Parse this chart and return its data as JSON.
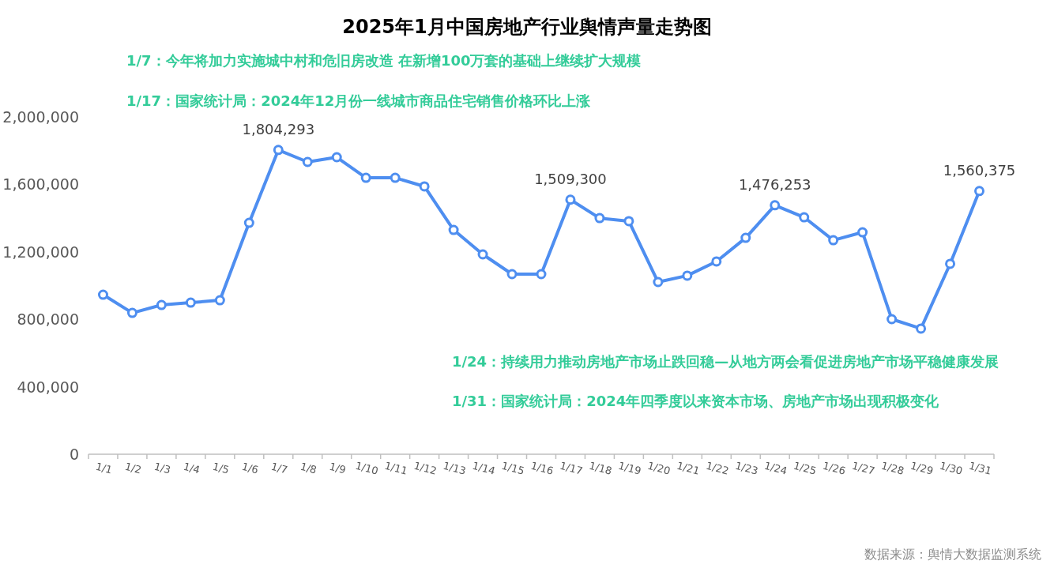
{
  "chart_data": {
    "type": "line",
    "title": "2025年1月中国房地产行业舆情声量走势图",
    "categories": [
      "1/1",
      "1/2",
      "1/3",
      "1/4",
      "1/5",
      "1/6",
      "1/7",
      "1/8",
      "1/9",
      "1/10",
      "1/11",
      "1/12",
      "1/13",
      "1/14",
      "1/15",
      "1/16",
      "1/17",
      "1/18",
      "1/19",
      "1/20",
      "1/21",
      "1/22",
      "1/23",
      "1/24",
      "1/25",
      "1/26",
      "1/27",
      "1/28",
      "1/29",
      "1/30",
      "1/31"
    ],
    "series": [
      {
        "color": "#4e8ef0",
        "values": [
          946000,
          838000,
          885000,
          899000,
          913000,
          1372000,
          1804293,
          1733000,
          1761000,
          1639000,
          1639000,
          1588000,
          1330000,
          1185000,
          1068000,
          1068000,
          1509300,
          1400000,
          1382000,
          1021000,
          1059000,
          1143000,
          1283000,
          1476253,
          1405000,
          1269000,
          1316000,
          801000,
          745000,
          1129000,
          1560375
        ],
        "value_labels": [
          null,
          null,
          null,
          null,
          null,
          null,
          "1,804,293",
          null,
          null,
          null,
          null,
          null,
          null,
          null,
          null,
          null,
          "1,509,300",
          null,
          null,
          null,
          null,
          null,
          null,
          "1,476,253",
          null,
          null,
          null,
          null,
          null,
          null,
          "1,560,375"
        ]
      }
    ],
    "ylim": [
      0,
      2000000
    ],
    "yticks": [
      {
        "value": 0,
        "label": "0"
      },
      {
        "value": 400000,
        "label": "400,000"
      },
      {
        "value": 800000,
        "label": "800,000"
      },
      {
        "value": 1200000,
        "label": "1,200,000"
      },
      {
        "value": 1600000,
        "label": "1,600,000"
      },
      {
        "value": 2000000,
        "label": "2,000,000"
      }
    ],
    "grid": false,
    "marker": "circle",
    "line_style": "solid",
    "annotations": [
      "1/7：今年将加力实施城中村和危旧房改造 在新增100万套的基础上继续扩大规模",
      "1/17：国家统计局：2024年12月份一线城市商品住宅销售价格环比上涨",
      "1/24：持续用力推动房地产市场止跌回稳—从地方两会看促进房地产市场平稳健康发展",
      "1/31：国家统计局：2024年四季度以来资本市场、房地产市场出现积极变化",
      "数据来源：舆情大数据监测系统"
    ]
  }
}
